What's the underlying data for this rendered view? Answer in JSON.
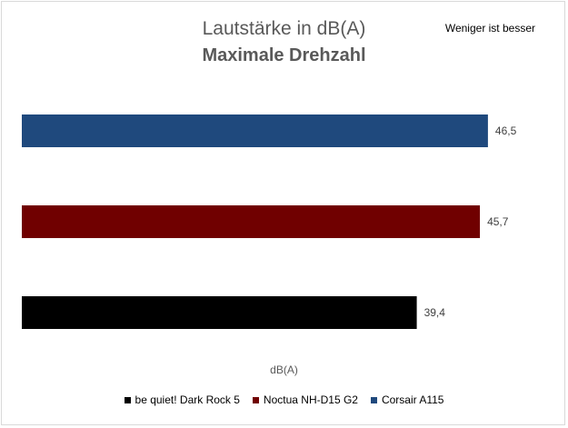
{
  "chart_data": {
    "type": "bar",
    "orientation": "horizontal",
    "title": "Lautstärke in dB(A)",
    "subtitle": "Maximale Drehzahl",
    "note": "Weniger ist besser",
    "xlabel": "dB(A)",
    "ylabel": "",
    "grid": false,
    "legend_position": "bottom",
    "xlim": [
      0,
      50
    ],
    "series": [
      {
        "name": "be quiet! Dark Rock 5",
        "value": 39.4,
        "label": "39,4",
        "color": "#000000"
      },
      {
        "name": "Noctua NH-D15 G2",
        "value": 45.7,
        "label": "45,7",
        "color": "#700000"
      },
      {
        "name": "Corsair A115",
        "value": 46.5,
        "label": "46,5",
        "color": "#1f497d"
      }
    ]
  }
}
